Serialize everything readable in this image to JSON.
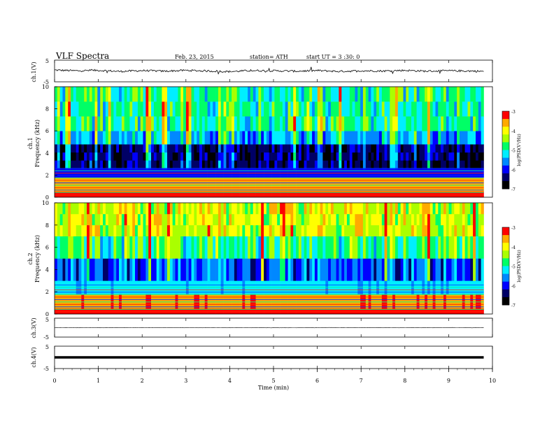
{
  "header": {
    "title": "VLF  Spectra",
    "date": "Feb. 23, 2015",
    "station": "station= ATH",
    "start": "start  UT =   3 :30: 0"
  },
  "colors": {
    "colormap": [
      "#000000",
      "#000066",
      "#0000ff",
      "#0088ff",
      "#00eeff",
      "#00ff66",
      "#aaff00",
      "#ffff00",
      "#ffaa00",
      "#ff0000",
      "#ffffff"
    ]
  },
  "chart_data": [
    {
      "type": "line",
      "panel": "ch1-waveform",
      "ylabel": "ch.1(V)",
      "ylim": [
        -5,
        5
      ],
      "y_ticks": [
        "5",
        "-5"
      ],
      "x": [
        0,
        0.5,
        1,
        1.5,
        2,
        2.5,
        3,
        3.5,
        4,
        4.5,
        5,
        5.5,
        6,
        6.5,
        7,
        7.5,
        8,
        8.5,
        9,
        9.5,
        9.8
      ],
      "y": [
        0.4,
        0.1,
        0.3,
        -0.2,
        0.2,
        -0.1,
        0.3,
        0.0,
        -0.3,
        0.2,
        0.1,
        -0.1,
        0.2,
        -0.2,
        0.1,
        0.0,
        0.3,
        -0.1,
        0.1,
        0.0,
        -0.2
      ]
    },
    {
      "type": "heatmap",
      "panel": "ch1-spectrogram",
      "ylabel": "Frequency  (kHz)",
      "channel_label": "ch.1",
      "ylim": [
        0,
        10
      ],
      "y_ticks": [
        "0",
        "2",
        "4",
        "6",
        "8",
        "10"
      ],
      "colorbar": {
        "label": "log(PSD(V²/Hz)",
        "range": [
          -7,
          -3
        ],
        "ticks": [
          "-3",
          "-4",
          "-5",
          "-6",
          "-7"
        ]
      },
      "freq_bands_khz": [
        [
          0,
          0.5
        ],
        [
          0.5,
          1.8
        ],
        [
          1.8,
          2.6
        ],
        [
          2.6,
          4.8
        ],
        [
          4.8,
          6.0
        ],
        [
          6.0,
          10
        ]
      ],
      "band_log_psd": [
        -3.0,
        -3.6,
        -6.0,
        -6.5,
        -5.5,
        -5.0
      ]
    },
    {
      "type": "heatmap",
      "panel": "ch2-spectrogram",
      "ylabel": "Frequency  (kHz)",
      "channel_label": "ch.2",
      "ylim": [
        0,
        10
      ],
      "y_ticks": [
        "0",
        "2",
        "4",
        "6",
        "8",
        "10"
      ],
      "colorbar": {
        "label": "log(PSD(V²/Hz)",
        "range": [
          -7,
          -3
        ],
        "ticks": [
          "-3",
          "-4",
          "-5",
          "-6",
          "-7"
        ]
      },
      "freq_bands_khz": [
        [
          0,
          0.5
        ],
        [
          0.5,
          1.8
        ],
        [
          1.8,
          3.0
        ],
        [
          3.0,
          5.0
        ],
        [
          5.0,
          7.0
        ],
        [
          7.0,
          10
        ]
      ],
      "band_log_psd": [
        -3.2,
        -3.5,
        -5.3,
        -5.8,
        -4.8,
        -4.2
      ]
    },
    {
      "type": "line",
      "panel": "ch3-waveform",
      "ylabel": "ch.3(V)",
      "ylim": [
        -5,
        5
      ],
      "y_ticks": [
        "5",
        "-5"
      ],
      "x": [
        0,
        9.8
      ],
      "y": [
        0,
        0
      ]
    },
    {
      "type": "line",
      "panel": "ch4-waveform",
      "ylabel": "ch.4(V)",
      "ylim": [
        -5,
        5
      ],
      "y_ticks": [
        "5",
        "-5"
      ],
      "x": [
        0,
        9.8
      ],
      "y": [
        0,
        0
      ]
    }
  ],
  "x_axis": {
    "label": "Time  (min)",
    "range": [
      0,
      10
    ],
    "ticks": [
      "0",
      "1",
      "2",
      "3",
      "4",
      "5",
      "6",
      "7",
      "8",
      "9",
      "10"
    ]
  }
}
